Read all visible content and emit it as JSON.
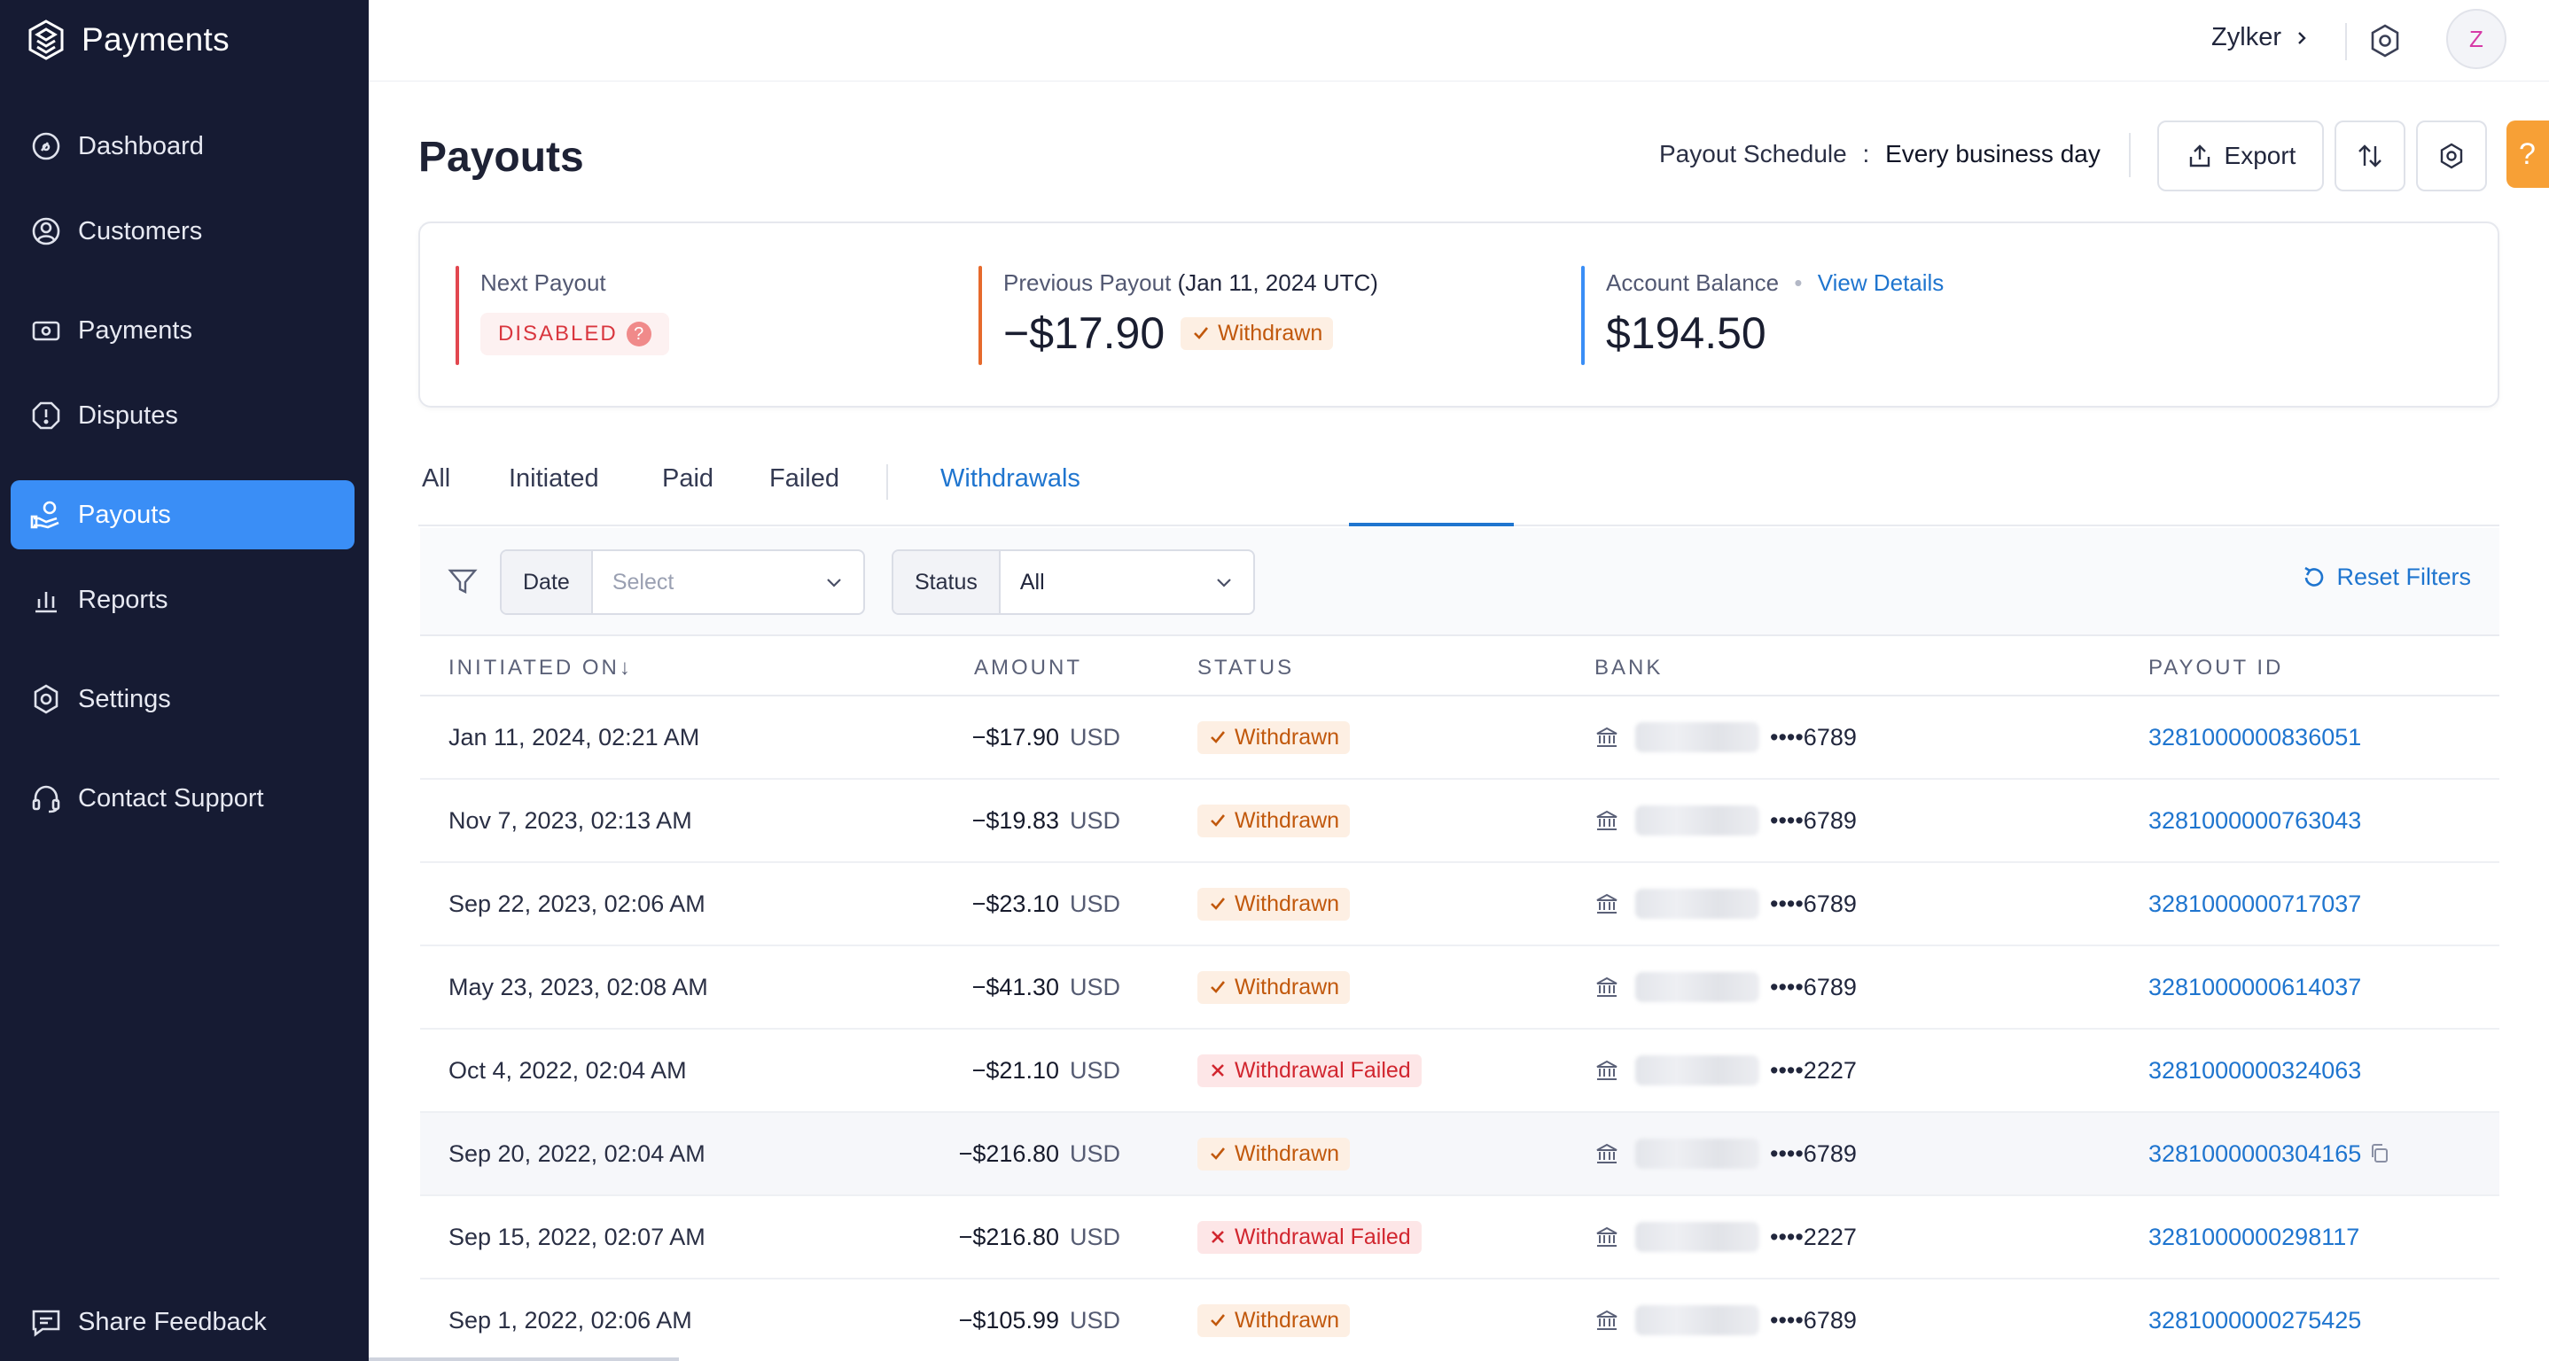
{
  "app": {
    "name": "Payments"
  },
  "sidebar": {
    "items": [
      {
        "label": "Dashboard",
        "icon": "dashboard-icon"
      },
      {
        "label": "Customers",
        "icon": "customers-icon"
      },
      {
        "label": "Payments",
        "icon": "payments-icon"
      },
      {
        "label": "Disputes",
        "icon": "disputes-icon"
      },
      {
        "label": "Payouts",
        "icon": "payouts-icon",
        "active": true
      },
      {
        "label": "Reports",
        "icon": "reports-icon"
      },
      {
        "label": "Settings",
        "icon": "settings-icon"
      },
      {
        "label": "Contact Support",
        "icon": "headset-icon"
      }
    ],
    "share_feedback": "Share Feedback"
  },
  "topbar": {
    "org_name": "Zylker",
    "avatar_initial": "Z"
  },
  "header": {
    "title": "Payouts",
    "schedule_label": "Payout Schedule",
    "schedule_sep": ":",
    "schedule_value": "Every business day",
    "export_label": "Export",
    "help_label": "?"
  },
  "summary": {
    "next_payout": {
      "label": "Next Payout",
      "status": "DISABLED",
      "status_icon": "?"
    },
    "previous_payout": {
      "label": "Previous Payout",
      "date": "(Jan 11, 2024 UTC)",
      "amount": "−$17.90",
      "status": "Withdrawn"
    },
    "account_balance": {
      "label": "Account Balance",
      "link": "View Details",
      "amount": "$194.50"
    }
  },
  "tabs": [
    {
      "label": "All"
    },
    {
      "label": "Initiated"
    },
    {
      "label": "Paid"
    },
    {
      "label": "Failed"
    },
    {
      "label": "Withdrawals",
      "active": true
    }
  ],
  "filters": {
    "date": {
      "label": "Date",
      "placeholder": "Select"
    },
    "status": {
      "label": "Status",
      "value": "All"
    },
    "reset_label": "Reset Filters"
  },
  "table": {
    "columns": {
      "initiated_on": "INITIATED ON",
      "amount": "AMOUNT",
      "status": "STATUS",
      "bank": "BANK",
      "payout_id": "PAYOUT ID"
    },
    "sort_indicator": "↓",
    "rows": [
      {
        "date": "Jan 11, 2024, 02:21 AM",
        "amount": "−$17.90",
        "currency": "USD",
        "status": "Withdrawn",
        "failed": false,
        "account": "••••6789",
        "payout_id": "3281000000836051"
      },
      {
        "date": "Nov 7, 2023, 02:13 AM",
        "amount": "−$19.83",
        "currency": "USD",
        "status": "Withdrawn",
        "failed": false,
        "account": "••••6789",
        "payout_id": "3281000000763043"
      },
      {
        "date": "Sep 22, 2023, 02:06 AM",
        "amount": "−$23.10",
        "currency": "USD",
        "status": "Withdrawn",
        "failed": false,
        "account": "••••6789",
        "payout_id": "3281000000717037"
      },
      {
        "date": "May 23, 2023, 02:08 AM",
        "amount": "−$41.30",
        "currency": "USD",
        "status": "Withdrawn",
        "failed": false,
        "account": "••••6789",
        "payout_id": "3281000000614037"
      },
      {
        "date": "Oct 4, 2022, 02:04 AM",
        "amount": "−$21.10",
        "currency": "USD",
        "status": "Withdrawal Failed",
        "failed": true,
        "account": "••••2227",
        "payout_id": "3281000000324063"
      },
      {
        "date": "Sep 20, 2022, 02:04 AM",
        "amount": "−$216.80",
        "currency": "USD",
        "status": "Withdrawn",
        "failed": false,
        "account": "••••6789",
        "payout_id": "3281000000304165",
        "hovered": true
      },
      {
        "date": "Sep 15, 2022, 02:07 AM",
        "amount": "−$216.80",
        "currency": "USD",
        "status": "Withdrawal Failed",
        "failed": true,
        "account": "••••2227",
        "payout_id": "3281000000298117"
      },
      {
        "date": "Sep 1, 2022, 02:06 AM",
        "amount": "−$105.99",
        "currency": "USD",
        "status": "Withdrawn",
        "failed": false,
        "account": "••••6789",
        "payout_id": "3281000000275425"
      }
    ]
  },
  "colors": {
    "sidebar_bg": "#161b33",
    "accent": "#3a8ef6",
    "link": "#1f75cf",
    "withdrawn": "#c1580c",
    "failed": "#d1262f"
  }
}
